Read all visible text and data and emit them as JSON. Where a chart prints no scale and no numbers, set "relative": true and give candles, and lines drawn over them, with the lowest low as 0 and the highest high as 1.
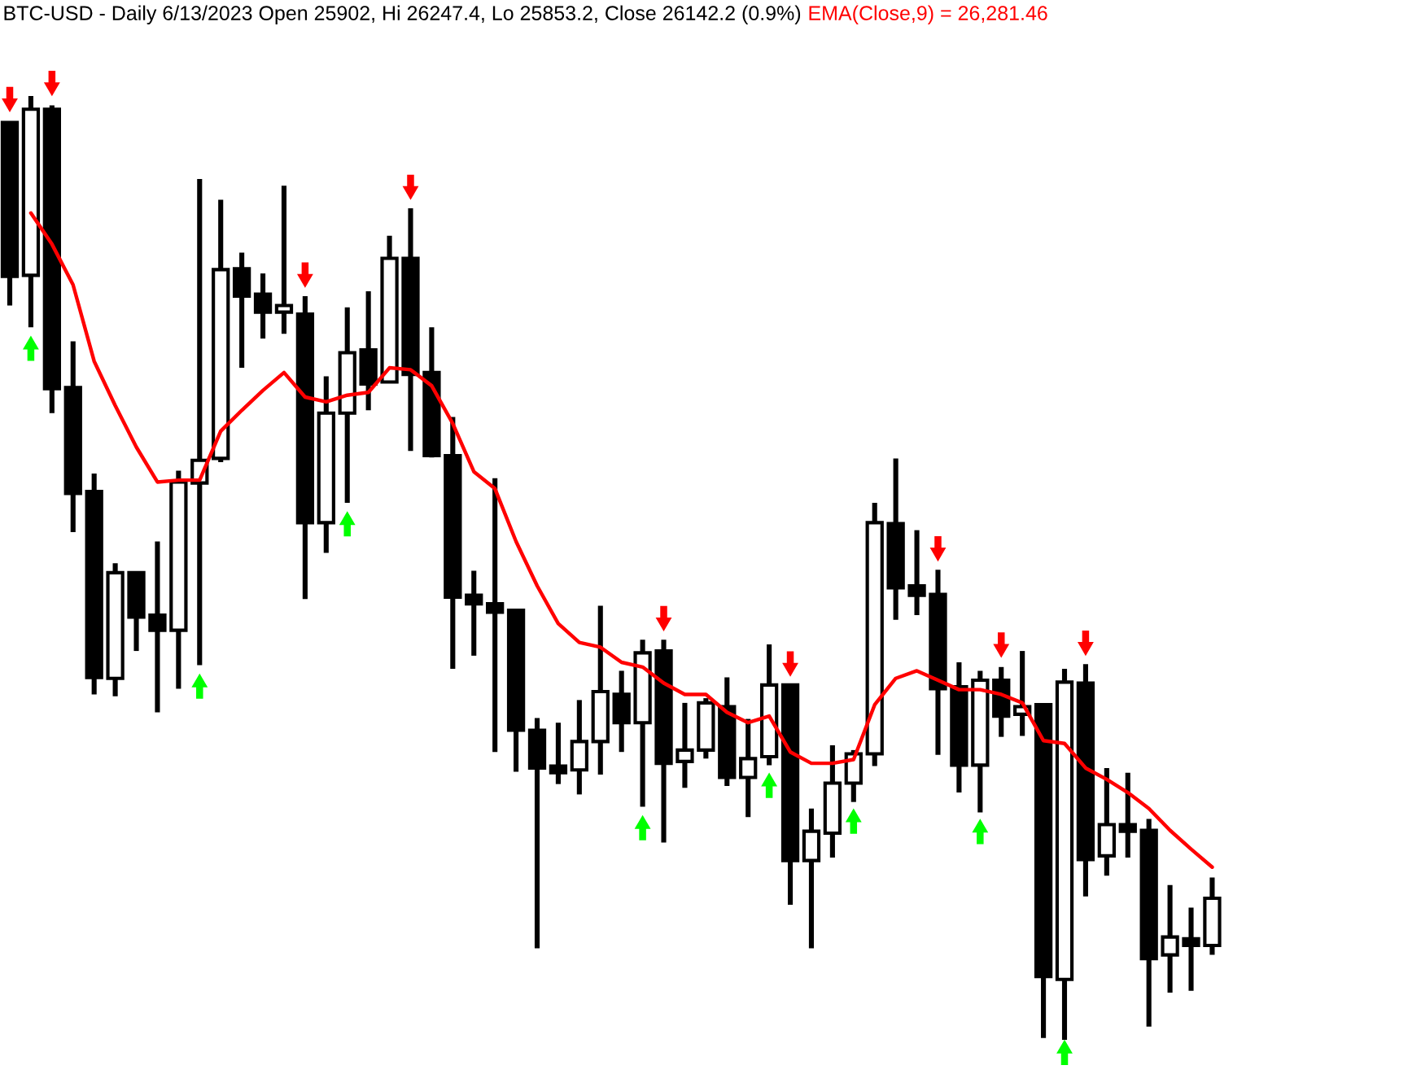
{
  "chart_data": {
    "type": "candlestick",
    "title": "BTC-USD - Daily 6/13/2023 Open 25902, Hi 26247.4, Lo 25853.2, Close 26142.2 (0.9%)",
    "relative": true,
    "categories": [
      null,
      null,
      null,
      null,
      null,
      null,
      null,
      null,
      null,
      null,
      null,
      null,
      null,
      null,
      null,
      null,
      null,
      null,
      null,
      null,
      null,
      null,
      null,
      null,
      null,
      null,
      null,
      null,
      null,
      null,
      null,
      null,
      null,
      null,
      null,
      null,
      null,
      null,
      null,
      null,
      null,
      null,
      null,
      null,
      null,
      null,
      null,
      null,
      null,
      null,
      null,
      null,
      null,
      null,
      null,
      null,
      null,
      null
    ],
    "ohlc": [
      [
        0.972,
        0.972,
        0.778,
        0.809
      ],
      [
        0.81,
        1,
        0.755,
        0.986
      ],
      [
        0.986,
        0.99,
        0.664,
        0.69
      ],
      [
        0.691,
        0.74,
        0.538,
        0.579
      ],
      [
        0.581,
        0.6,
        0.366,
        0.384
      ],
      [
        0.383,
        0.505,
        0.364,
        0.495
      ],
      [
        0.495,
        0.495,
        0.412,
        0.448
      ],
      [
        0.45,
        0.528,
        0.347,
        0.434
      ],
      [
        0.434,
        0.603,
        0.372,
        0.591
      ],
      [
        0.59,
        0.912,
        0.397,
        0.614
      ],
      [
        0.616,
        0.89,
        0.612,
        0.816
      ],
      [
        0.817,
        0.834,
        0.712,
        0.788
      ],
      [
        0.79,
        0.812,
        0.743,
        0.771
      ],
      [
        0.771,
        0.905,
        0.748,
        0.778
      ],
      [
        0.769,
        0.788,
        0.467,
        0.548
      ],
      [
        0.548,
        0.703,
        0.516,
        0.664
      ],
      [
        0.664,
        0.776,
        0.569,
        0.728
      ],
      [
        0.731,
        0.793,
        0.667,
        0.695
      ],
      [
        0.697,
        0.852,
        0.697,
        0.828
      ],
      [
        0.828,
        0.881,
        0.624,
        0.705
      ],
      [
        0.707,
        0.755,
        0.617,
        0.619
      ],
      [
        0.619,
        0.66,
        0.393,
        0.469
      ],
      [
        0.471,
        0.497,
        0.407,
        0.462
      ],
      [
        0.462,
        0.595,
        0.305,
        0.453
      ],
      [
        0.455,
        0.455,
        0.284,
        0.328
      ],
      [
        0.328,
        0.341,
        0.097,
        0.288
      ],
      [
        0.29,
        0.336,
        0.271,
        0.283
      ],
      [
        0.286,
        0.36,
        0.26,
        0.316
      ],
      [
        0.316,
        0.46,
        0.281,
        0.369
      ],
      [
        0.366,
        0.391,
        0.305,
        0.336
      ],
      [
        0.336,
        0.424,
        0.247,
        0.41
      ],
      [
        0.412,
        0.424,
        0.209,
        0.293
      ],
      [
        0.295,
        0.357,
        0.267,
        0.307
      ],
      [
        0.307,
        0.362,
        0.298,
        0.357
      ],
      [
        0.353,
        0.384,
        0.269,
        0.278
      ],
      [
        0.278,
        0.34,
        0.236,
        0.298
      ],
      [
        0.3,
        0.419,
        0.291,
        0.376
      ],
      [
        0.376,
        0.376,
        0.143,
        0.19
      ],
      [
        0.19,
        0.245,
        0.097,
        0.221
      ],
      [
        0.219,
        0.312,
        0.193,
        0.272
      ],
      [
        0.272,
        0.307,
        0.252,
        0.303
      ],
      [
        0.303,
        0.569,
        0.29,
        0.548
      ],
      [
        0.547,
        0.616,
        0.445,
        0.479
      ],
      [
        0.481,
        0.54,
        0.45,
        0.471
      ],
      [
        0.472,
        0.498,
        0.302,
        0.372
      ],
      [
        0.374,
        0.4,
        0.262,
        0.291
      ],
      [
        0.291,
        0.391,
        0.241,
        0.381
      ],
      [
        0.381,
        0.395,
        0.321,
        0.343
      ],
      [
        0.345,
        0.412,
        0.322,
        0.353
      ],
      [
        0.355,
        0.357,
        0.002,
        0.067
      ],
      [
        0.064,
        0.393,
        0,
        0.379
      ],
      [
        0.378,
        0.398,
        0.152,
        0.191
      ],
      [
        0.195,
        0.288,
        0.174,
        0.228
      ],
      [
        0.228,
        0.283,
        0.193,
        0.221
      ],
      [
        0.222,
        0.234,
        0.014,
        0.086
      ],
      [
        0.09,
        0.164,
        0.05,
        0.109
      ],
      [
        0.107,
        0.14,
        0.052,
        0.1
      ],
      [
        0.1,
        0.172,
        0.09,
        0.15
      ]
    ],
    "series": [
      {
        "name": "EMA(Close,9) = 26,281.46",
        "type": "line",
        "color": "#ff0000",
        "values": [
          null,
          0.876,
          0.843,
          0.8,
          0.719,
          0.672,
          0.628,
          0.591,
          0.593,
          0.593,
          0.645,
          0.667,
          0.688,
          0.707,
          0.681,
          0.676,
          0.683,
          0.686,
          0.712,
          0.71,
          0.693,
          0.653,
          0.602,
          0.584,
          0.528,
          0.481,
          0.441,
          0.421,
          0.416,
          0.4,
          0.395,
          0.378,
          0.366,
          0.366,
          0.347,
          0.336,
          0.343,
          0.305,
          0.293,
          0.293,
          0.297,
          0.355,
          0.383,
          0.391,
          0.381,
          0.371,
          0.371,
          0.366,
          0.357,
          0.317,
          0.314,
          0.288,
          0.276,
          0.262,
          0.245,
          0.222,
          0.202,
          0.183
        ]
      },
      {
        "type": "scatter",
        "color": "#ff0000",
        "values": [
          0.995,
          null,
          1.012,
          null,
          null,
          null,
          null,
          null,
          null,
          null,
          null,
          null,
          null,
          null,
          0.809,
          null,
          null,
          null,
          null,
          0.902,
          null,
          null,
          null,
          null,
          null,
          null,
          null,
          null,
          null,
          null,
          null,
          0.445,
          null,
          null,
          null,
          null,
          null,
          0.397,
          null,
          null,
          null,
          null,
          null,
          null,
          0.519,
          null,
          null,
          0.417,
          null,
          null,
          null,
          0.419,
          null,
          null,
          null,
          null,
          null,
          null
        ]
      },
      {
        "type": "scatter",
        "color": "#00ff00",
        "values": [
          null,
          0.734,
          null,
          null,
          null,
          null,
          null,
          null,
          null,
          0.376,
          null,
          null,
          null,
          null,
          null,
          null,
          0.548,
          null,
          null,
          null,
          null,
          null,
          null,
          null,
          null,
          null,
          null,
          null,
          null,
          null,
          0.226,
          null,
          null,
          null,
          null,
          null,
          0.271,
          null,
          null,
          null,
          0.233,
          null,
          null,
          null,
          null,
          null,
          0.222,
          null,
          null,
          null,
          -0.012,
          null,
          null,
          null,
          null,
          null,
          null,
          null
        ]
      }
    ]
  }
}
